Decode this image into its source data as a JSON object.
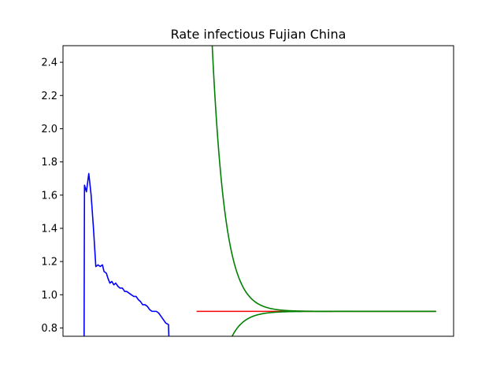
{
  "chart_data": {
    "type": "line",
    "title": "Rate infectious Fujian China",
    "xlabel": "",
    "ylabel": "",
    "ylim": [
      0.75,
      2.5
    ],
    "xlim": [
      0,
      100
    ],
    "yticks": [
      0.8,
      1.0,
      1.2,
      1.4,
      1.6,
      1.8,
      2.0,
      2.2,
      2.4
    ],
    "ytick_labels": [
      "0.8",
      "1.0",
      "1.2",
      "1.4",
      "1.6",
      "1.8",
      "2.0",
      "2.2",
      "2.4"
    ],
    "xticks_visible": false,
    "grid": false,
    "series": [
      {
        "color": "#0000ff",
        "points": [
          [
            5.4,
            0.75
          ],
          [
            5.5,
            1.66
          ],
          [
            6.0,
            1.62
          ],
          [
            6.6,
            1.73
          ],
          [
            7.2,
            1.6
          ],
          [
            7.8,
            1.4
          ],
          [
            8.4,
            1.17
          ],
          [
            9.0,
            1.18
          ],
          [
            9.5,
            1.17
          ],
          [
            10.1,
            1.18
          ],
          [
            10.5,
            1.14
          ],
          [
            11.1,
            1.13
          ],
          [
            11.5,
            1.1
          ],
          [
            12.0,
            1.07
          ],
          [
            12.5,
            1.08
          ],
          [
            13.0,
            1.06
          ],
          [
            13.5,
            1.07
          ],
          [
            14.1,
            1.05
          ],
          [
            14.6,
            1.04
          ],
          [
            15.2,
            1.04
          ],
          [
            15.8,
            1.02
          ],
          [
            16.3,
            1.02
          ],
          [
            16.9,
            1.01
          ],
          [
            17.5,
            1.0
          ],
          [
            18.1,
            0.99
          ],
          [
            18.7,
            0.99
          ],
          [
            19.3,
            0.97
          ],
          [
            19.8,
            0.96
          ],
          [
            20.4,
            0.94
          ],
          [
            21.0,
            0.94
          ],
          [
            21.6,
            0.93
          ],
          [
            22.2,
            0.91
          ],
          [
            22.8,
            0.9
          ],
          [
            23.3,
            0.9
          ],
          [
            23.9,
            0.9
          ],
          [
            24.5,
            0.89
          ],
          [
            25.1,
            0.87
          ],
          [
            25.7,
            0.85
          ],
          [
            26.3,
            0.83
          ],
          [
            27.0,
            0.82
          ],
          [
            27.1,
            0.75
          ]
        ]
      },
      {
        "color": "#ff0000",
        "points": [
          [
            34.2,
            0.9
          ],
          [
            95.5,
            0.9
          ]
        ]
      },
      {
        "color": "#008000",
        "function": "0.90 + 1.6*exp(-(x - 38.2)/3.3)",
        "x_range": [
          38.2,
          95.5
        ]
      },
      {
        "color": "#008000",
        "function": "0.90 - 0.15*exp(-(x - 43.3)/3.3)",
        "x_range": [
          43.3,
          95.5
        ]
      }
    ]
  }
}
